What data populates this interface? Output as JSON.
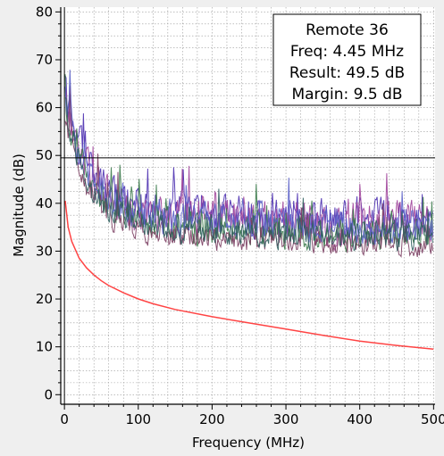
{
  "chart_data": {
    "type": "line",
    "title": "",
    "xlabel": "Frequency (MHz)",
    "ylabel": "Magnitude (dB)",
    "xlim": [
      -5,
      502
    ],
    "ylim": [
      -2,
      81
    ],
    "x_ticks": [
      0,
      100,
      200,
      300,
      400,
      500
    ],
    "y_ticks": [
      0,
      10,
      20,
      30,
      40,
      50,
      60,
      70,
      80
    ],
    "grid": true,
    "grid_style": "dotted",
    "reference_line": {
      "y": 49.5,
      "color": "#000000"
    },
    "limit_line": {
      "color": "#ff4444",
      "points": [
        [
          1,
          40.5
        ],
        [
          5,
          35.0
        ],
        [
          10,
          32.0
        ],
        [
          20,
          28.5
        ],
        [
          30,
          26.5
        ],
        [
          40,
          25.0
        ],
        [
          50,
          23.8
        ],
        [
          60,
          22.8
        ],
        [
          80,
          21.3
        ],
        [
          100,
          20.0
        ],
        [
          120,
          19.0
        ],
        [
          150,
          17.8
        ],
        [
          200,
          16.3
        ],
        [
          250,
          15.0
        ],
        [
          300,
          13.7
        ],
        [
          350,
          12.4
        ],
        [
          400,
          11.2
        ],
        [
          450,
          10.3
        ],
        [
          500,
          9.5
        ]
      ]
    },
    "series": [
      {
        "color": "#4b2fb0",
        "base": 36.5,
        "amp": 5.5,
        "seed": 11
      },
      {
        "color": "#a0449a",
        "base": 35.5,
        "amp": 6.0,
        "seed": 23
      },
      {
        "color": "#3a7a4a",
        "base": 33.5,
        "amp": 4.5,
        "seed": 37
      },
      {
        "color": "#7a3d60",
        "base": 31.5,
        "amp": 3.5,
        "seed": 51
      },
      {
        "color": "#5a5fc8",
        "base": 35.0,
        "amp": 5.0,
        "seed": 67
      },
      {
        "color": "#2f5e5e",
        "base": 33.0,
        "amp": 4.0,
        "seed": 83
      }
    ],
    "annotation": {
      "lines": [
        "Remote 36",
        "Freq: 4.45 MHz",
        "Result: 49.5 dB",
        "Margin: 9.5 dB"
      ],
      "position": "top-right"
    }
  }
}
